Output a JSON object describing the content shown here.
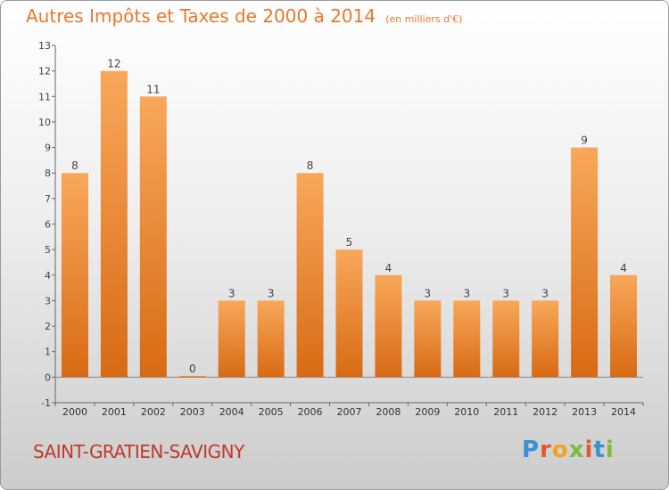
{
  "header": {
    "title": "Autres Impôts et Taxes de 2000 à 2014",
    "unit": "(en milliers d'€)"
  },
  "commune": "SAINT-GRATIEN-SAVIGNY",
  "logo": {
    "text": "Proxiti",
    "colors": [
      "#3a8fd6",
      "#e35a2a",
      "#f3a21c",
      "#7dbb3c",
      "#e35a2a",
      "#3a8fd6",
      "#7dbb3c"
    ]
  },
  "chart_data": {
    "type": "bar",
    "title": "Autres Impôts et Taxes de 2000 à 2014",
    "xlabel": "",
    "ylabel": "",
    "categories": [
      "2000",
      "2001",
      "2002",
      "2003",
      "2004",
      "2005",
      "2006",
      "2007",
      "2008",
      "2009",
      "2010",
      "2011",
      "2012",
      "2013",
      "2014"
    ],
    "values": [
      8,
      12,
      11,
      0,
      3,
      3,
      8,
      5,
      4,
      3,
      3,
      3,
      3,
      9,
      4
    ],
    "ylim": [
      -1,
      13
    ],
    "yticks": [
      -1,
      0,
      1,
      2,
      3,
      4,
      5,
      6,
      7,
      8,
      9,
      10,
      11,
      12,
      13
    ],
    "grid": false,
    "bar_color": "#f08a30"
  }
}
